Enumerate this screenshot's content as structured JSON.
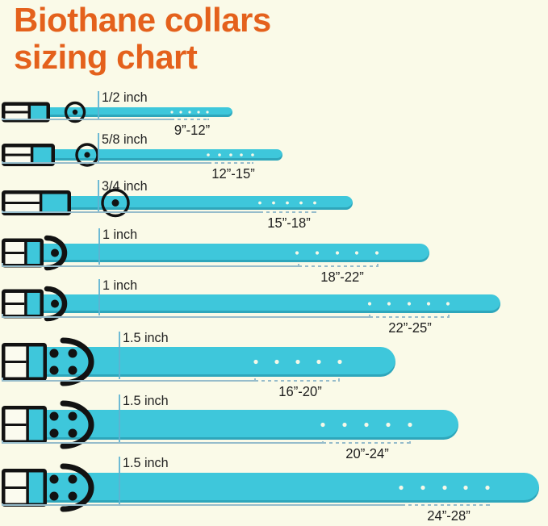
{
  "title": {
    "line1": "Biothane collars",
    "line2": "sizing chart"
  },
  "colors": {
    "background": "#FAFAE8",
    "title_orange": "#E4611C",
    "collar_teal": "#3EC7DB",
    "collar_teal_dark_edge": "#2C9FB6",
    "buckle_black": "#121212",
    "buckle_cell_white": "#FBFBEF",
    "measure_line_blue": "#96BCCB",
    "width_marker_blue": "#5FB4D2",
    "hole_cream": "#F5F8E8",
    "label_dark": "#1E1E1E"
  },
  "chart_data": {
    "type": "table",
    "title": "Biothane collars sizing chart",
    "columns": [
      "collar_width",
      "neck_size_range"
    ],
    "rows": [
      {
        "width": "1/2 inch",
        "range": "9”-12”"
      },
      {
        "width": "5/8 inch",
        "range": "12”-15”"
      },
      {
        "width": "3/4 inch",
        "range": "15”-18”"
      },
      {
        "width": "1 inch",
        "range": "18”-22”"
      },
      {
        "width": "1 inch",
        "range": "22”-25”"
      },
      {
        "width": "1.5 inch",
        "range": "16”-20”"
      },
      {
        "width": "1.5 inch",
        "range": "20”-24”"
      },
      {
        "width": "1.5 inch",
        "range": "24”-28”"
      }
    ],
    "notes": "Each collar is drawn with a buckle on the left, five adjustment holes, and a dimension bracket (solid + dashed) marking the adjustable neck-size range."
  }
}
